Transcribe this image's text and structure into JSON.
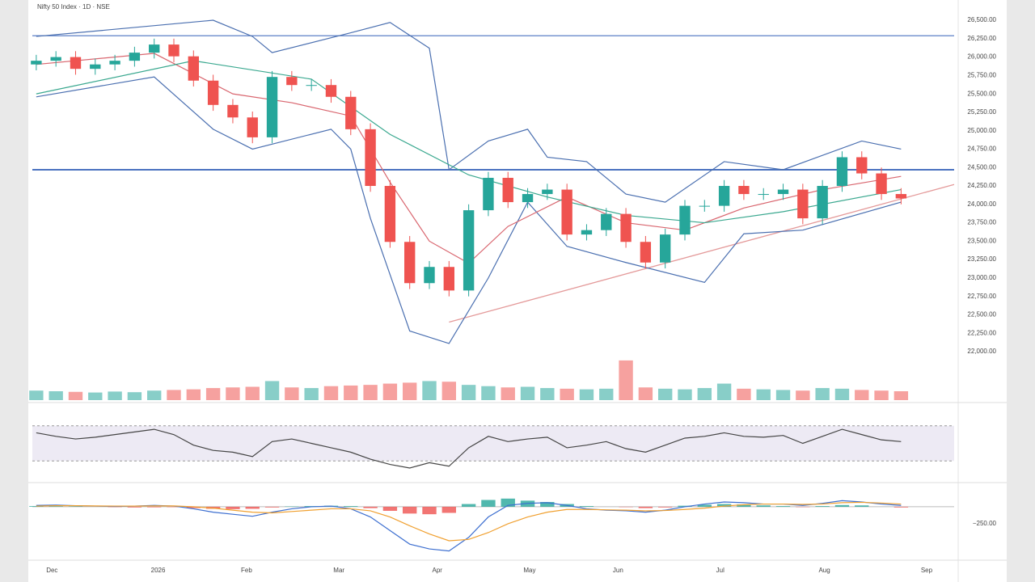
{
  "chart_data": [
    {
      "type": "candlestick",
      "title": "Nifty 50 Index · 1D · NSE",
      "up_color": "#26a69a",
      "down_color": "#ef5350",
      "open": [
        25900,
        25950,
        26000,
        25840,
        25900,
        25950,
        26060,
        26170,
        26010,
        25680,
        25350,
        25180,
        24910,
        25730,
        25620,
        25620,
        25460,
        25020,
        24250,
        23490,
        22930,
        23150,
        22830,
        23920,
        24360,
        24030,
        24140,
        24200,
        23590,
        23650,
        23870,
        23490,
        23210,
        23590,
        23980,
        23980,
        24250,
        24140,
        24140,
        24200,
        23810,
        24250,
        24640,
        24420,
        24140
      ],
      "high": [
        26030,
        26080,
        26080,
        25980,
        26030,
        26140,
        26250,
        26250,
        26090,
        25760,
        25430,
        25260,
        25810,
        25810,
        25700,
        25700,
        25540,
        25100,
        24330,
        23570,
        23230,
        23230,
        24000,
        24440,
        24440,
        24220,
        24280,
        24280,
        23730,
        23950,
        23950,
        23570,
        23670,
        24060,
        24060,
        24330,
        24330,
        24220,
        24280,
        24280,
        24330,
        24720,
        24720,
        24500,
        24220
      ],
      "low": [
        25820,
        25870,
        25760,
        25760,
        25820,
        25870,
        25980,
        25930,
        25600,
        25270,
        25100,
        24830,
        24830,
        25540,
        25540,
        25380,
        24940,
        24170,
        23410,
        22850,
        22850,
        22750,
        22750,
        23840,
        23950,
        23950,
        24060,
        23510,
        23510,
        23570,
        23410,
        23130,
        23130,
        23510,
        23900,
        23900,
        24060,
        24060,
        24060,
        23730,
        23730,
        24170,
        24340,
        24060,
        24000
      ],
      "close": [
        25950,
        26000,
        25840,
        25900,
        25950,
        26060,
        26170,
        26010,
        25680,
        25350,
        25180,
        24910,
        25730,
        25620,
        25620,
        25460,
        25020,
        24250,
        23490,
        22930,
        23150,
        22830,
        23920,
        24360,
        24030,
        24140,
        24200,
        23590,
        23650,
        23870,
        23490,
        23210,
        23590,
        23980,
        23980,
        24250,
        24140,
        24140,
        24200,
        23810,
        24250,
        24640,
        24420,
        24140,
        24080
      ],
      "xlim": [
        -0.2,
        46.7
      ],
      "xticks": [
        {
          "value": 0.8,
          "label": "Dec"
        },
        {
          "value": 6.2,
          "label": "2026"
        },
        {
          "value": 10.7,
          "label": "Feb"
        },
        {
          "value": 15.4,
          "label": "Mar"
        },
        {
          "value": 20.4,
          "label": "Apr"
        },
        {
          "value": 25.1,
          "label": "May"
        },
        {
          "value": 29.6,
          "label": "Jun"
        },
        {
          "value": 34.8,
          "label": "Jul"
        },
        {
          "value": 40.1,
          "label": "Aug"
        },
        {
          "value": 45.3,
          "label": "Sep"
        }
      ],
      "ylim": [
        21945,
        26720
      ],
      "yticks": [
        {
          "value": 26500,
          "label": "26,500.00"
        },
        {
          "value": 26250,
          "label": "26,250.00"
        },
        {
          "value": 26000,
          "label": "26,000.00"
        },
        {
          "value": 25750,
          "label": "25,750.00"
        },
        {
          "value": 25500,
          "label": "25,500.00"
        },
        {
          "value": 25250,
          "label": "25,250.00"
        },
        {
          "value": 25000,
          "label": "25,000.00"
        },
        {
          "value": 24750,
          "label": "24,750.00"
        },
        {
          "value": 24500,
          "label": "24,500.00"
        },
        {
          "value": 24250,
          "label": "24,250.00"
        },
        {
          "value": 24000,
          "label": "24,000.00"
        },
        {
          "value": 23750,
          "label": "23,750.00"
        },
        {
          "value": 23500,
          "label": "23,500.00"
        },
        {
          "value": 23250,
          "label": "23,250.00"
        },
        {
          "value": 23000,
          "label": "23,000.00"
        },
        {
          "value": 22750,
          "label": "22,750.00"
        },
        {
          "value": 22500,
          "label": "22,500.00"
        },
        {
          "value": 22250,
          "label": "22,250.00"
        },
        {
          "value": 22000,
          "label": "22,000.00"
        }
      ],
      "lines": [
        {
          "color": "#4a6fb0",
          "x": [
            0,
            9,
            11,
            12,
            16,
            18,
            20,
            21,
            23,
            25,
            26,
            28,
            30,
            32,
            35,
            38,
            42,
            44
          ],
          "values": [
            26280,
            26500,
            26280,
            26060,
            26330,
            26470,
            26120,
            24470,
            24860,
            25020,
            24640,
            24580,
            24140,
            24030,
            24580,
            24470,
            24860,
            24750
          ]
        },
        {
          "color": "#4a6fb0",
          "x": [
            0,
            6,
            9,
            11,
            15,
            16,
            17,
            19,
            21,
            23,
            25,
            27,
            30,
            34,
            36,
            39,
            44
          ],
          "values": [
            25460,
            25730,
            25020,
            24750,
            25020,
            24750,
            23810,
            22280,
            22110,
            23000,
            24030,
            23430,
            23210,
            22940,
            23600,
            23650,
            24030
          ]
        },
        {
          "color": "#d9666f",
          "x": [
            0,
            6,
            10,
            13,
            16,
            18,
            20,
            22,
            24,
            27,
            30,
            33,
            36,
            40,
            44
          ],
          "values": [
            25900,
            26050,
            25500,
            25380,
            25200,
            24300,
            23500,
            23200,
            23700,
            24100,
            23750,
            23650,
            23950,
            24200,
            24380
          ]
        },
        {
          "color": "#3aa88f",
          "x": [
            0,
            8,
            14,
            18,
            22,
            26,
            30,
            34,
            38,
            44
          ],
          "values": [
            25500,
            25950,
            25700,
            24950,
            24400,
            24100,
            23850,
            23750,
            23900,
            24200
          ]
        }
      ],
      "hlines": {
        "color": "#4a72c0",
        "values": [
          26290,
          24470
        ]
      },
      "trendline": {
        "color": "#e49a9a",
        "x": [
          21,
          46.7
        ],
        "values": [
          22400,
          24270
        ]
      }
    },
    {
      "type": "bar",
      "ylim": [
        0,
        140
      ],
      "values": [
        30,
        28,
        26,
        24,
        27,
        25,
        30,
        32,
        34,
        38,
        40,
        42,
        60,
        40,
        38,
        44,
        46,
        48,
        52,
        55,
        60,
        58,
        48,
        44,
        40,
        42,
        38,
        36,
        34,
        36,
        125,
        40,
        36,
        34,
        38,
        52,
        36,
        34,
        32,
        30,
        38,
        36,
        32,
        30,
        28
      ]
    },
    {
      "type": "line",
      "color": "#444444",
      "band_color": "#d8d0e6",
      "ylim": [
        10,
        90
      ],
      "levels": [
        70,
        30
      ],
      "values": [
        62,
        58,
        55,
        57,
        60,
        63,
        66,
        60,
        48,
        42,
        40,
        35,
        52,
        55,
        50,
        45,
        40,
        32,
        26,
        22,
        28,
        24,
        45,
        58,
        52,
        55,
        57,
        45,
        48,
        52,
        44,
        40,
        48,
        56,
        58,
        62,
        58,
        57,
        59,
        50,
        58,
        66,
        60,
        54,
        52
      ]
    },
    {
      "type": "macd",
      "up_color": "#26a69a",
      "down_color": "#ef5350",
      "ylim": [
        -750,
        320
      ],
      "yticks": [
        {
          "value": -250,
          "label": "−250.00"
        }
      ],
      "values": [
        10,
        8,
        5,
        0,
        -5,
        -10,
        -8,
        -5,
        -20,
        -30,
        -35,
        -30,
        -10,
        5,
        10,
        15,
        10,
        -20,
        -60,
        -100,
        -110,
        -90,
        40,
        100,
        120,
        90,
        70,
        40,
        10,
        0,
        -5,
        -20,
        -10,
        15,
        30,
        40,
        35,
        20,
        10,
        -5,
        10,
        25,
        20,
        0,
        -10
      ],
      "series": [
        {
          "color": "#3d6fd0",
          "values": [
            20,
            25,
            15,
            10,
            5,
            10,
            20,
            10,
            -30,
            -80,
            -110,
            -140,
            -80,
            -30,
            0,
            10,
            -30,
            -150,
            -350,
            -550,
            -620,
            -650,
            -450,
            -150,
            20,
            50,
            60,
            20,
            -30,
            -50,
            -60,
            -80,
            -50,
            0,
            40,
            70,
            60,
            40,
            40,
            20,
            50,
            90,
            70,
            40,
            20
          ]
        },
        {
          "color": "#f0a030",
          "values": [
            10,
            15,
            15,
            12,
            10,
            10,
            12,
            12,
            0,
            -20,
            -50,
            -80,
            -90,
            -70,
            -50,
            -30,
            -30,
            -60,
            -150,
            -280,
            -400,
            -500,
            -480,
            -380,
            -250,
            -150,
            -80,
            -40,
            -40,
            -45,
            -50,
            -60,
            -55,
            -40,
            -20,
            10,
            30,
            40,
            40,
            35,
            40,
            60,
            65,
            55,
            40
          ]
        }
      ]
    }
  ]
}
